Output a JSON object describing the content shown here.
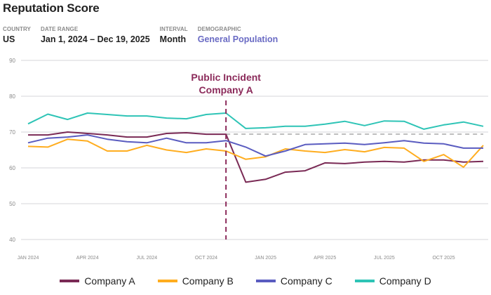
{
  "header": {
    "title": "Reputation Score",
    "filters": [
      {
        "label": "COUNTRY",
        "value": "US"
      },
      {
        "label": "DATE RANGE",
        "value": "Jan 1, 2024 – Dec 19, 2025"
      },
      {
        "label": "INTERVAL",
        "value": "Month"
      },
      {
        "label": "DEMOGRAPHIC",
        "value": "General Population"
      }
    ]
  },
  "colors": {
    "annotation": "#8b2a5a",
    "grid": "#d6d6d9",
    "reference": "#a8a8a8",
    "tick_text": "#8a8a8a",
    "link": "#6a6bc4"
  },
  "chart_data": {
    "type": "line",
    "title": "Reputation Score",
    "xlabel": "",
    "ylabel": "",
    "ylim": [
      40,
      90
    ],
    "yticks": [
      40,
      50,
      60,
      70,
      80,
      90
    ],
    "grid": true,
    "legend_position": "bottom",
    "x": [
      "Jan 2024",
      "Feb 2024",
      "Mar 2024",
      "Apr 2024",
      "May 2024",
      "Jun 2024",
      "Jul 2024",
      "Aug 2024",
      "Sep 2024",
      "Oct 2024",
      "Nov 2024",
      "Dec 2024",
      "Jan 2025",
      "Feb 2025",
      "Mar 2025",
      "Apr 2025",
      "May 2025",
      "Jun 2025",
      "Jul 2025",
      "Aug 2025",
      "Sep 2025",
      "Oct 2025",
      "Nov 2025",
      "Dec 2025"
    ],
    "xtick_labels": [
      {
        "index": 0,
        "label": "JAN 2024"
      },
      {
        "index": 3,
        "label": "APR 2024"
      },
      {
        "index": 6,
        "label": "JUL 2024"
      },
      {
        "index": 9,
        "label": "OCT 2024"
      },
      {
        "index": 12,
        "label": "JAN 2025"
      },
      {
        "index": 15,
        "label": "APR 2025"
      },
      {
        "index": 18,
        "label": "JUL 2025"
      },
      {
        "index": 21,
        "label": "OCT 2025"
      }
    ],
    "series": [
      {
        "name": "Company A",
        "color": "#7a2a55",
        "values": [
          69.2,
          69.2,
          70.0,
          69.6,
          69.2,
          68.6,
          68.6,
          69.6,
          69.8,
          69.4,
          69.4,
          56.0,
          56.8,
          58.8,
          59.2,
          61.4,
          61.2,
          61.6,
          61.8,
          61.6,
          62.2,
          62.2,
          61.6,
          61.8
        ]
      },
      {
        "name": "Company B",
        "color": "#ffad1f",
        "values": [
          66.0,
          65.8,
          68.0,
          67.5,
          64.7,
          64.7,
          66.3,
          65.0,
          64.3,
          65.3,
          64.7,
          62.4,
          63.1,
          65.3,
          64.7,
          64.3,
          65.1,
          64.5,
          65.7,
          65.5,
          61.8,
          63.7,
          60.2,
          66.3
        ]
      },
      {
        "name": "Company C",
        "color": "#5a5cc0",
        "values": [
          67.0,
          68.3,
          68.6,
          69.2,
          68.0,
          67.3,
          67.0,
          68.3,
          67.0,
          67.0,
          67.6,
          65.8,
          63.3,
          64.7,
          66.5,
          66.7,
          66.9,
          66.5,
          67.0,
          67.6,
          66.9,
          66.7,
          65.5,
          65.5
        ]
      },
      {
        "name": "Company D",
        "color": "#2ec4b6",
        "values": [
          72.3,
          75.0,
          73.5,
          75.3,
          74.9,
          74.5,
          74.5,
          73.9,
          73.7,
          74.9,
          75.3,
          71.0,
          71.2,
          71.6,
          71.6,
          72.2,
          73.0,
          71.8,
          73.1,
          73.0,
          70.8,
          72.0,
          72.8,
          71.6
        ]
      }
    ],
    "annotations": [
      {
        "type": "vertical-dashed",
        "at_index": 10,
        "text_lines": [
          "Public Incident",
          "Company A"
        ]
      },
      {
        "type": "horizontal-dashed",
        "from_index": 10,
        "to_index": 23,
        "value": 69.4
      }
    ]
  }
}
